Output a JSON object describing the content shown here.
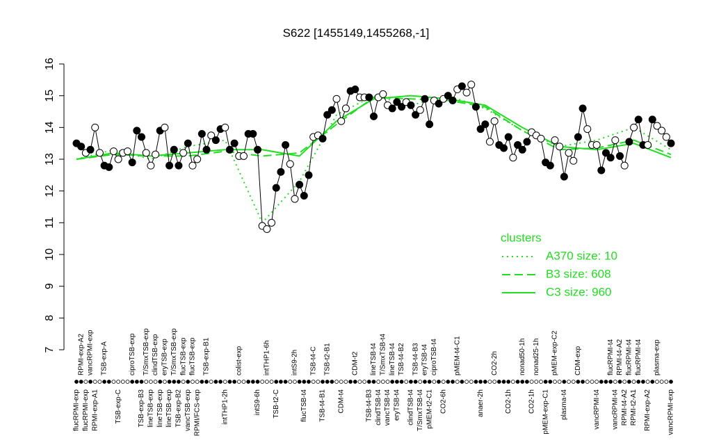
{
  "chart_data": {
    "type": "line",
    "title": "S622 [1455149,1455268,-1]",
    "ylim": [
      7,
      16
    ],
    "yticks": [
      7,
      8,
      9,
      10,
      11,
      12,
      13,
      14,
      15,
      16
    ],
    "xlim": [
      0,
      128
    ],
    "values": [
      13.5,
      13.4,
      13.2,
      13.3,
      14.0,
      13.2,
      12.8,
      12.75,
      13.25,
      13.0,
      13.2,
      13.25,
      12.9,
      13.9,
      13.7,
      13.2,
      12.8,
      13.15,
      13.9,
      14.0,
      12.8,
      13.3,
      12.8,
      13.2,
      13.5,
      12.8,
      13.0,
      13.8,
      13.3,
      13.75,
      13.6,
      13.95,
      14.0,
      13.3,
      13.5,
      13.1,
      13.1,
      13.8,
      13.8,
      13.3,
      10.9,
      10.8,
      11.0,
      12.1,
      12.6,
      13.45,
      12.85,
      11.75,
      12.2,
      11.85,
      12.5,
      13.7,
      13.75,
      13.65,
      14.4,
      14.55,
      14.9,
      14.2,
      14.6,
      15.15,
      15.2,
      14.95,
      14.95,
      14.95,
      14.35,
      14.95,
      15.05,
      14.7,
      14.6,
      14.8,
      14.65,
      14.8,
      14.7,
      14.4,
      14.55,
      14.9,
      14.1,
      14.85,
      14.75,
      14.9,
      15.0,
      14.85,
      15.2,
      15.3,
      15.1,
      15.35,
      14.65,
      13.95,
      14.1,
      13.55,
      14.2,
      13.45,
      13.35,
      13.7,
      13.05,
      13.45,
      13.3,
      13.55,
      13.85,
      13.75,
      13.65,
      12.9,
      12.8,
      13.6,
      13.4,
      12.45,
      13.2,
      12.95,
      13.7,
      14.6,
      13.95,
      13.45,
      13.45,
      12.65,
      13.2,
      13.05,
      13.6,
      13.1,
      12.8,
      13.55,
      14.0,
      14.25,
      13.45,
      13.45,
      14.25,
      14.05,
      13.9,
      13.7,
      13.5
    ],
    "filled": [
      true,
      true,
      false,
      true,
      false,
      false,
      true,
      true,
      false,
      false,
      false,
      false,
      true,
      true,
      true,
      false,
      false,
      false,
      true,
      false,
      true,
      true,
      true,
      false,
      true,
      false,
      false,
      true,
      true,
      false,
      true,
      true,
      false,
      true,
      true,
      false,
      false,
      true,
      true,
      true,
      false,
      false,
      false,
      true,
      true,
      true,
      false,
      false,
      true,
      true,
      true,
      false,
      false,
      true,
      true,
      true,
      false,
      false,
      false,
      true,
      true,
      false,
      false,
      true,
      true,
      false,
      false,
      false,
      true,
      true,
      true,
      false,
      true,
      true,
      false,
      true,
      true,
      false,
      true,
      false,
      true,
      true,
      false,
      true,
      false,
      false,
      true,
      true,
      true,
      false,
      false,
      true,
      true,
      true,
      false,
      true,
      true,
      true,
      false,
      false,
      false,
      true,
      true,
      false,
      false,
      true,
      false,
      false,
      true,
      true,
      false,
      false,
      false,
      true,
      true,
      true,
      false,
      true,
      false,
      true,
      false,
      true,
      true,
      false,
      true,
      false,
      false,
      false,
      true
    ],
    "categories": [
      "flucRPMI-exp",
      "RPMI-exp-A2",
      "flucRPMI-exp",
      "vancRPMI-exp",
      "RPMI-exp-A1",
      null,
      "TSB-exp-A",
      null,
      null,
      "TSB-exp-C",
      null,
      null,
      "ciproTSB-exp",
      null,
      "TSB-exp-B3",
      "T/SmxTSB-exp",
      "lineTSB-exp",
      "clindTSB-exp",
      "lineTSB-exp",
      "eryTSB-exp",
      "lineTSB-exp",
      "T/SmxTSB-exp",
      "TSB-exp-B2",
      "flucTSB-exp",
      "vancTSB-exp",
      "flucTSB-exp",
      "RPMI/FCS-exp",
      null,
      "TSB-exp-B1",
      null,
      null,
      null,
      "intTHP1-2h",
      null,
      null,
      "colist-exp",
      null,
      null,
      null,
      "intS9-6h",
      null,
      "intTHP1-6h",
      null,
      "TSB-t2-C",
      null,
      null,
      null,
      "intS9-2h",
      null,
      "flucTSB-t4",
      null,
      "TSB-t4-C",
      null,
      "TSB-t4-B1",
      "TSB-t2-B1",
      null,
      null,
      "CDM-t4",
      null,
      null,
      "CDM-t2",
      null,
      null,
      "TSB-t4-B3",
      "lineTSB-t4",
      "clindTSB-t4",
      "T/SmxTSB-t4",
      "vancTSB-t4",
      "lineTSB-t4",
      "eryTSB-t4",
      "TSB-t4-B2",
      null,
      "clindTSB-t4",
      "TSB-t4-B3",
      "T/SmxTSB-t4",
      "eryTSB-t4",
      "pMEM-t2-C1",
      "ciproTSB-t4",
      null,
      "CO2-6h",
      null,
      null,
      "pMEM-t4-C1",
      null,
      null,
      null,
      null,
      "anaer-2h",
      null,
      null,
      "CO2-2h",
      null,
      null,
      "CO2-1h",
      null,
      null,
      "nonad50-1h",
      null,
      "CO2-1h",
      "nonad25-1h",
      null,
      "pMEM-exp-C1",
      null,
      "pMEM-exp-C2",
      null,
      "plasma-t4",
      null,
      null,
      "CDM-exp",
      null,
      null,
      null,
      "vancRPMI-t4",
      null,
      null,
      "flucRPMI-t4",
      "vancRPMI-t4",
      "RPMI-t4-A2",
      "RPMI-t4-A2",
      "flucRPMI-t4",
      "RPMI-t2-A1",
      "flucRPMI-t4",
      null,
      "RPMI-exp-A2",
      null,
      "plasma-exp",
      null,
      null,
      "vancRPMI-exp"
    ],
    "legend": {
      "title": "clusters",
      "position": "right"
    },
    "series": [
      {
        "name": "A370 size: 10",
        "color": "#22dd22",
        "dash": "dotted",
        "x": [
          0,
          8,
          16,
          24,
          32,
          40,
          48,
          56,
          64,
          72,
          80,
          88,
          96,
          104,
          112,
          120,
          128
        ],
        "values": [
          13.0,
          13.3,
          13.0,
          13.4,
          13.6,
          11.0,
          12.3,
          14.4,
          15.0,
          14.7,
          15.0,
          14.6,
          13.9,
          13.4,
          13.6,
          14.0,
          13.3
        ]
      },
      {
        "name": "B3 size: 608",
        "color": "#22dd22",
        "dash": "dashed",
        "x": [
          0,
          8,
          16,
          24,
          32,
          40,
          48,
          56,
          64,
          72,
          80,
          88,
          96,
          104,
          112,
          120,
          128
        ],
        "values": [
          13.0,
          13.15,
          13.1,
          13.1,
          13.25,
          13.1,
          13.2,
          14.1,
          14.95,
          14.9,
          14.85,
          14.65,
          13.9,
          13.3,
          13.35,
          13.6,
          13.15
        ]
      },
      {
        "name": "C3 size: 960",
        "color": "#22dd22",
        "dash": "solid",
        "x": [
          0,
          8,
          16,
          24,
          32,
          40,
          48,
          56,
          64,
          72,
          80,
          88,
          96,
          104,
          112,
          120,
          128
        ],
        "values": [
          13.0,
          13.2,
          13.1,
          13.2,
          13.3,
          13.3,
          13.1,
          14.2,
          14.9,
          15.0,
          14.9,
          14.7,
          14.0,
          13.4,
          13.3,
          13.5,
          13.05
        ]
      }
    ]
  }
}
